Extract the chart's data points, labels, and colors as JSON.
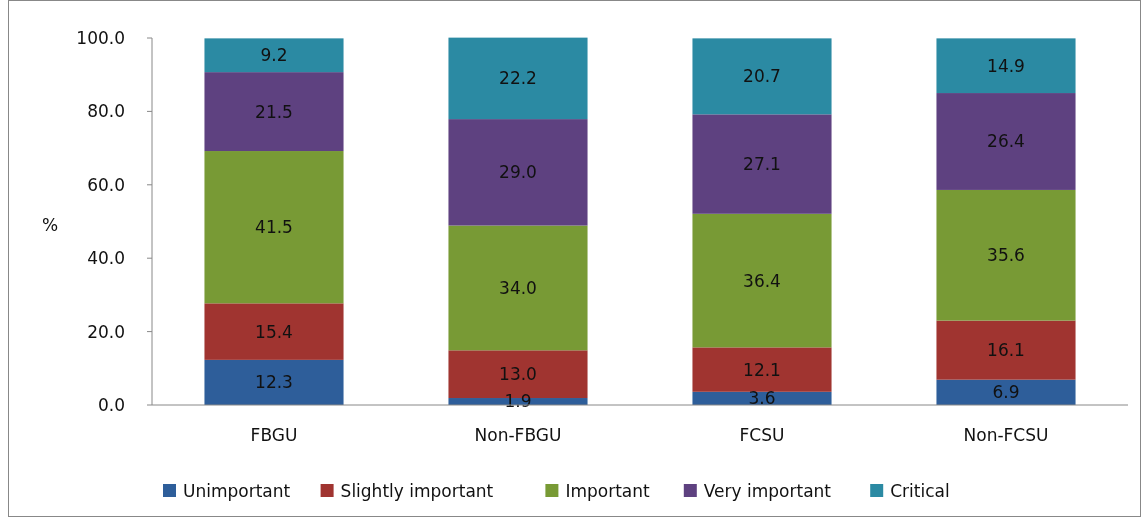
{
  "chart_data": {
    "type": "bar",
    "stacked": true,
    "ylabel": "%",
    "categories": [
      "FBGU",
      "Non-FBGU",
      "FCSU",
      "Non-FCSU"
    ],
    "series": [
      {
        "name": "Unimportant",
        "color": "#2e5e9a",
        "values": [
          12.3,
          1.9,
          3.6,
          6.9
        ],
        "value_labels": [
          "12.3",
          "1.9",
          "3.6",
          "6.9"
        ]
      },
      {
        "name": "Slightly important",
        "color": "#a03430",
        "values": [
          15.4,
          13.0,
          12.1,
          16.1
        ],
        "value_labels": [
          "15.4",
          "13.0",
          "12.1",
          "16.1"
        ]
      },
      {
        "name": "Important",
        "color": "#789a35",
        "values": [
          41.5,
          34.0,
          36.4,
          35.6
        ],
        "value_labels": [
          "41.5",
          "34.0",
          "36.4",
          "35.6"
        ]
      },
      {
        "name": "Very important",
        "color": "#5e4180",
        "values": [
          21.5,
          29.0,
          27.1,
          26.4
        ],
        "value_labels": [
          "21.5",
          "29.0",
          "27.1",
          "26.4"
        ]
      },
      {
        "name": "Critical",
        "color": "#2b8aa3",
        "values": [
          9.2,
          22.2,
          20.7,
          14.9
        ],
        "value_labels": [
          "9.2",
          "22.2",
          "20.7",
          "14.9"
        ]
      }
    ],
    "ylim": [
      0,
      100
    ],
    "yticks": [
      {
        "value": 0,
        "label": "0.0"
      },
      {
        "value": 20,
        "label": "20.0"
      },
      {
        "value": 40,
        "label": "40.0"
      },
      {
        "value": 60,
        "label": "60.0"
      },
      {
        "value": 80,
        "label": "80.0"
      },
      {
        "value": 100,
        "label": "100.0"
      }
    ],
    "legend": "bottom",
    "grid": false
  }
}
